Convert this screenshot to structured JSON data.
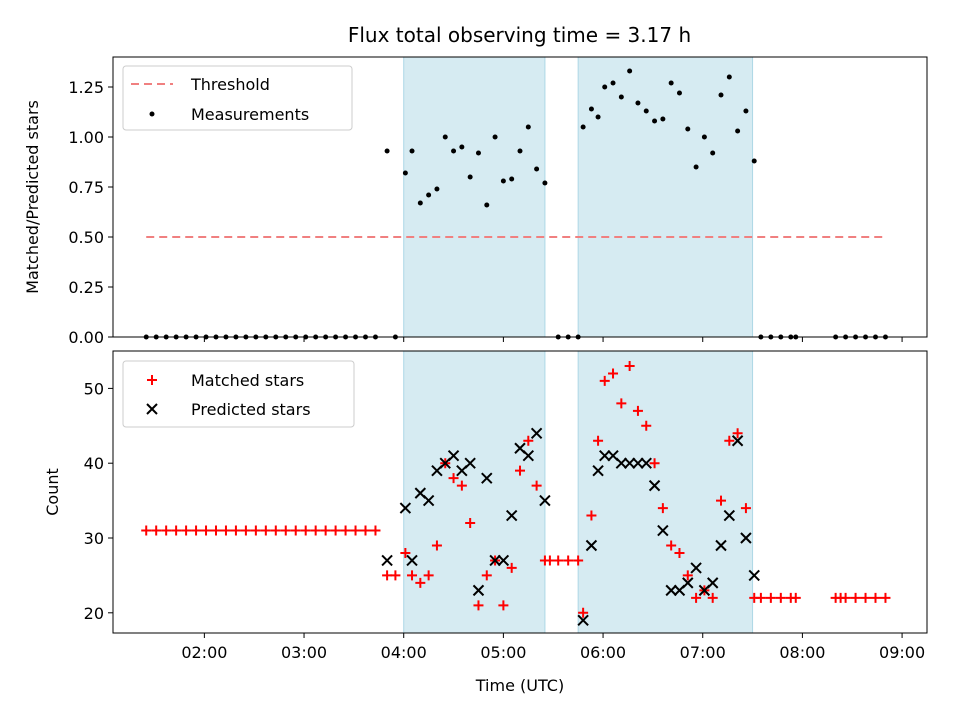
{
  "title": "Flux total observing time = 3.17 h",
  "chart_data": [
    {
      "type": "scatter",
      "ylabel": "Matched/Predicted stars",
      "xlim": [
        "01:05",
        "09:15"
      ],
      "ylim": [
        0,
        1.4
      ],
      "yticks": [
        0,
        0.25,
        0.5,
        0.75,
        1.0,
        1.25
      ],
      "ytick_labels": [
        "0.00",
        "0.25",
        "0.50",
        "0.75",
        "1.00",
        "1.25"
      ],
      "shaded_intervals": [
        [
          "04:00",
          "05:25"
        ],
        [
          "05:45",
          "07:30"
        ]
      ],
      "legend": {
        "position": "upper-left",
        "threshold_label": "Threshold",
        "measurements_label": "Measurements"
      },
      "threshold": {
        "value": 0.5,
        "x_start": "01:25",
        "x_end": "08:50",
        "color": "#f08080",
        "style": "dashed"
      },
      "measurements": {
        "color": "#000000",
        "points": [
          [
            "01:25",
            0
          ],
          [
            "01:31",
            0
          ],
          [
            "01:37",
            0
          ],
          [
            "01:43",
            0
          ],
          [
            "01:49",
            0
          ],
          [
            "01:55",
            0
          ],
          [
            "02:01",
            0
          ],
          [
            "02:07",
            0
          ],
          [
            "02:13",
            0
          ],
          [
            "02:19",
            0
          ],
          [
            "02:25",
            0
          ],
          [
            "02:31",
            0
          ],
          [
            "02:37",
            0
          ],
          [
            "02:43",
            0
          ],
          [
            "02:49",
            0
          ],
          [
            "02:55",
            0
          ],
          [
            "03:01",
            0
          ],
          [
            "03:07",
            0
          ],
          [
            "03:13",
            0
          ],
          [
            "03:19",
            0
          ],
          [
            "03:25",
            0
          ],
          [
            "03:31",
            0
          ],
          [
            "03:37",
            0
          ],
          [
            "03:43",
            0
          ],
          [
            "03:55",
            0
          ],
          [
            "03:50",
            0.93
          ],
          [
            "04:01",
            0.82
          ],
          [
            "04:05",
            0.93
          ],
          [
            "04:10",
            0.67
          ],
          [
            "04:15",
            0.71
          ],
          [
            "04:20",
            0.74
          ],
          [
            "04:25",
            1.0
          ],
          [
            "04:30",
            0.93
          ],
          [
            "04:35",
            0.95
          ],
          [
            "04:40",
            0.8
          ],
          [
            "04:45",
            0.92
          ],
          [
            "04:50",
            0.66
          ],
          [
            "04:55",
            1.0
          ],
          [
            "05:00",
            0.78
          ],
          [
            "05:05",
            0.79
          ],
          [
            "05:10",
            0.93
          ],
          [
            "05:15",
            1.05
          ],
          [
            "05:20",
            0.84
          ],
          [
            "05:25",
            0.77
          ],
          [
            "05:33",
            0
          ],
          [
            "05:39",
            0
          ],
          [
            "05:45",
            0
          ],
          [
            "05:48",
            1.05
          ],
          [
            "05:53",
            1.14
          ],
          [
            "05:57",
            1.1
          ],
          [
            "06:01",
            1.25
          ],
          [
            "06:06",
            1.27
          ],
          [
            "06:11",
            1.2
          ],
          [
            "06:16",
            1.33
          ],
          [
            "06:21",
            1.17
          ],
          [
            "06:26",
            1.13
          ],
          [
            "06:31",
            1.08
          ],
          [
            "06:36",
            1.09
          ],
          [
            "06:41",
            1.27
          ],
          [
            "06:46",
            1.22
          ],
          [
            "06:51",
            1.04
          ],
          [
            "06:56",
            0.85
          ],
          [
            "07:01",
            1.0
          ],
          [
            "07:06",
            0.92
          ],
          [
            "07:11",
            1.21
          ],
          [
            "07:16",
            1.3
          ],
          [
            "07:21",
            1.03
          ],
          [
            "07:26",
            1.13
          ],
          [
            "07:31",
            0.88
          ],
          [
            "07:35",
            0
          ],
          [
            "07:41",
            0
          ],
          [
            "07:47",
            0
          ],
          [
            "07:53",
            0
          ],
          [
            "07:56",
            0
          ],
          [
            "08:20",
            0
          ],
          [
            "08:26",
            0
          ],
          [
            "08:32",
            0
          ],
          [
            "08:38",
            0
          ],
          [
            "08:44",
            0
          ],
          [
            "08:50",
            0
          ]
        ]
      }
    },
    {
      "type": "scatter",
      "xlabel": "Time (UTC)",
      "ylabel": "Count",
      "xlim": [
        "01:05",
        "09:15"
      ],
      "ylim": [
        17.3,
        55
      ],
      "yticks": [
        20,
        30,
        40,
        50
      ],
      "ytick_labels": [
        "20",
        "30",
        "40",
        "50"
      ],
      "xticks": [
        "02:00",
        "03:00",
        "04:00",
        "05:00",
        "06:00",
        "07:00",
        "08:00",
        "09:00"
      ],
      "shaded_intervals": [
        [
          "04:00",
          "05:25"
        ],
        [
          "05:45",
          "07:30"
        ]
      ],
      "legend": {
        "position": "upper-left"
      },
      "series": [
        {
          "name": "Matched stars",
          "marker": "+",
          "color": "#ff0000",
          "points": [
            [
              "01:25",
              31
            ],
            [
              "01:31",
              31
            ],
            [
              "01:37",
              31
            ],
            [
              "01:43",
              31
            ],
            [
              "01:49",
              31
            ],
            [
              "01:55",
              31
            ],
            [
              "02:01",
              31
            ],
            [
              "02:07",
              31
            ],
            [
              "02:13",
              31
            ],
            [
              "02:19",
              31
            ],
            [
              "02:25",
              31
            ],
            [
              "02:31",
              31
            ],
            [
              "02:37",
              31
            ],
            [
              "02:43",
              31
            ],
            [
              "02:49",
              31
            ],
            [
              "02:55",
              31
            ],
            [
              "03:01",
              31
            ],
            [
              "03:07",
              31
            ],
            [
              "03:13",
              31
            ],
            [
              "03:19",
              31
            ],
            [
              "03:25",
              31
            ],
            [
              "03:31",
              31
            ],
            [
              "03:37",
              31
            ],
            [
              "03:43",
              31
            ],
            [
              "03:50",
              25
            ],
            [
              "03:55",
              25
            ],
            [
              "04:01",
              28
            ],
            [
              "04:05",
              25
            ],
            [
              "04:10",
              24
            ],
            [
              "04:15",
              25
            ],
            [
              "04:20",
              29
            ],
            [
              "04:25",
              40
            ],
            [
              "04:30",
              38
            ],
            [
              "04:35",
              37
            ],
            [
              "04:40",
              32
            ],
            [
              "04:45",
              21
            ],
            [
              "04:50",
              25
            ],
            [
              "04:55",
              27
            ],
            [
              "05:00",
              21
            ],
            [
              "05:05",
              26
            ],
            [
              "05:10",
              39
            ],
            [
              "05:15",
              43
            ],
            [
              "05:20",
              37
            ],
            [
              "05:25",
              27
            ],
            [
              "05:28",
              27
            ],
            [
              "05:33",
              27
            ],
            [
              "05:39",
              27
            ],
            [
              "05:45",
              27
            ],
            [
              "05:48",
              20
            ],
            [
              "05:53",
              33
            ],
            [
              "05:57",
              43
            ],
            [
              "06:01",
              51
            ],
            [
              "06:06",
              52
            ],
            [
              "06:11",
              48
            ],
            [
              "06:16",
              53
            ],
            [
              "06:21",
              47
            ],
            [
              "06:26",
              45
            ],
            [
              "06:31",
              40
            ],
            [
              "06:36",
              34
            ],
            [
              "06:41",
              29
            ],
            [
              "06:46",
              28
            ],
            [
              "06:51",
              25
            ],
            [
              "06:56",
              22
            ],
            [
              "07:01",
              23
            ],
            [
              "07:06",
              22
            ],
            [
              "07:11",
              35
            ],
            [
              "07:16",
              43
            ],
            [
              "07:21",
              44
            ],
            [
              "07:26",
              34
            ],
            [
              "07:31",
              22
            ],
            [
              "07:35",
              22
            ],
            [
              "07:41",
              22
            ],
            [
              "07:47",
              22
            ],
            [
              "07:53",
              22
            ],
            [
              "07:56",
              22
            ],
            [
              "08:20",
              22
            ],
            [
              "08:23",
              22
            ],
            [
              "08:26",
              22
            ],
            [
              "08:32",
              22
            ],
            [
              "08:38",
              22
            ],
            [
              "08:44",
              22
            ],
            [
              "08:50",
              22
            ]
          ]
        },
        {
          "name": "Predicted stars",
          "marker": "x",
          "color": "#000000",
          "points": [
            [
              "03:50",
              27
            ],
            [
              "04:01",
              34
            ],
            [
              "04:05",
              27
            ],
            [
              "04:10",
              36
            ],
            [
              "04:15",
              35
            ],
            [
              "04:20",
              39
            ],
            [
              "04:25",
              40
            ],
            [
              "04:30",
              41
            ],
            [
              "04:35",
              39
            ],
            [
              "04:40",
              40
            ],
            [
              "04:45",
              23
            ],
            [
              "04:50",
              38
            ],
            [
              "04:55",
              27
            ],
            [
              "05:00",
              27
            ],
            [
              "05:05",
              33
            ],
            [
              "05:10",
              42
            ],
            [
              "05:15",
              41
            ],
            [
              "05:20",
              44
            ],
            [
              "05:25",
              35
            ],
            [
              "05:48",
              19
            ],
            [
              "05:53",
              29
            ],
            [
              "05:57",
              39
            ],
            [
              "06:01",
              41
            ],
            [
              "06:06",
              41
            ],
            [
              "06:11",
              40
            ],
            [
              "06:16",
              40
            ],
            [
              "06:21",
              40
            ],
            [
              "06:26",
              40
            ],
            [
              "06:31",
              37
            ],
            [
              "06:36",
              31
            ],
            [
              "06:41",
              23
            ],
            [
              "06:46",
              23
            ],
            [
              "06:51",
              24
            ],
            [
              "06:56",
              26
            ],
            [
              "07:01",
              23
            ],
            [
              "07:06",
              24
            ],
            [
              "07:11",
              29
            ],
            [
              "07:16",
              33
            ],
            [
              "07:21",
              43
            ],
            [
              "07:26",
              30
            ],
            [
              "07:31",
              25
            ]
          ]
        }
      ]
    }
  ],
  "colors": {
    "shade_fill": "#add8e6",
    "threshold": "#f08080",
    "axes": "#000000"
  }
}
